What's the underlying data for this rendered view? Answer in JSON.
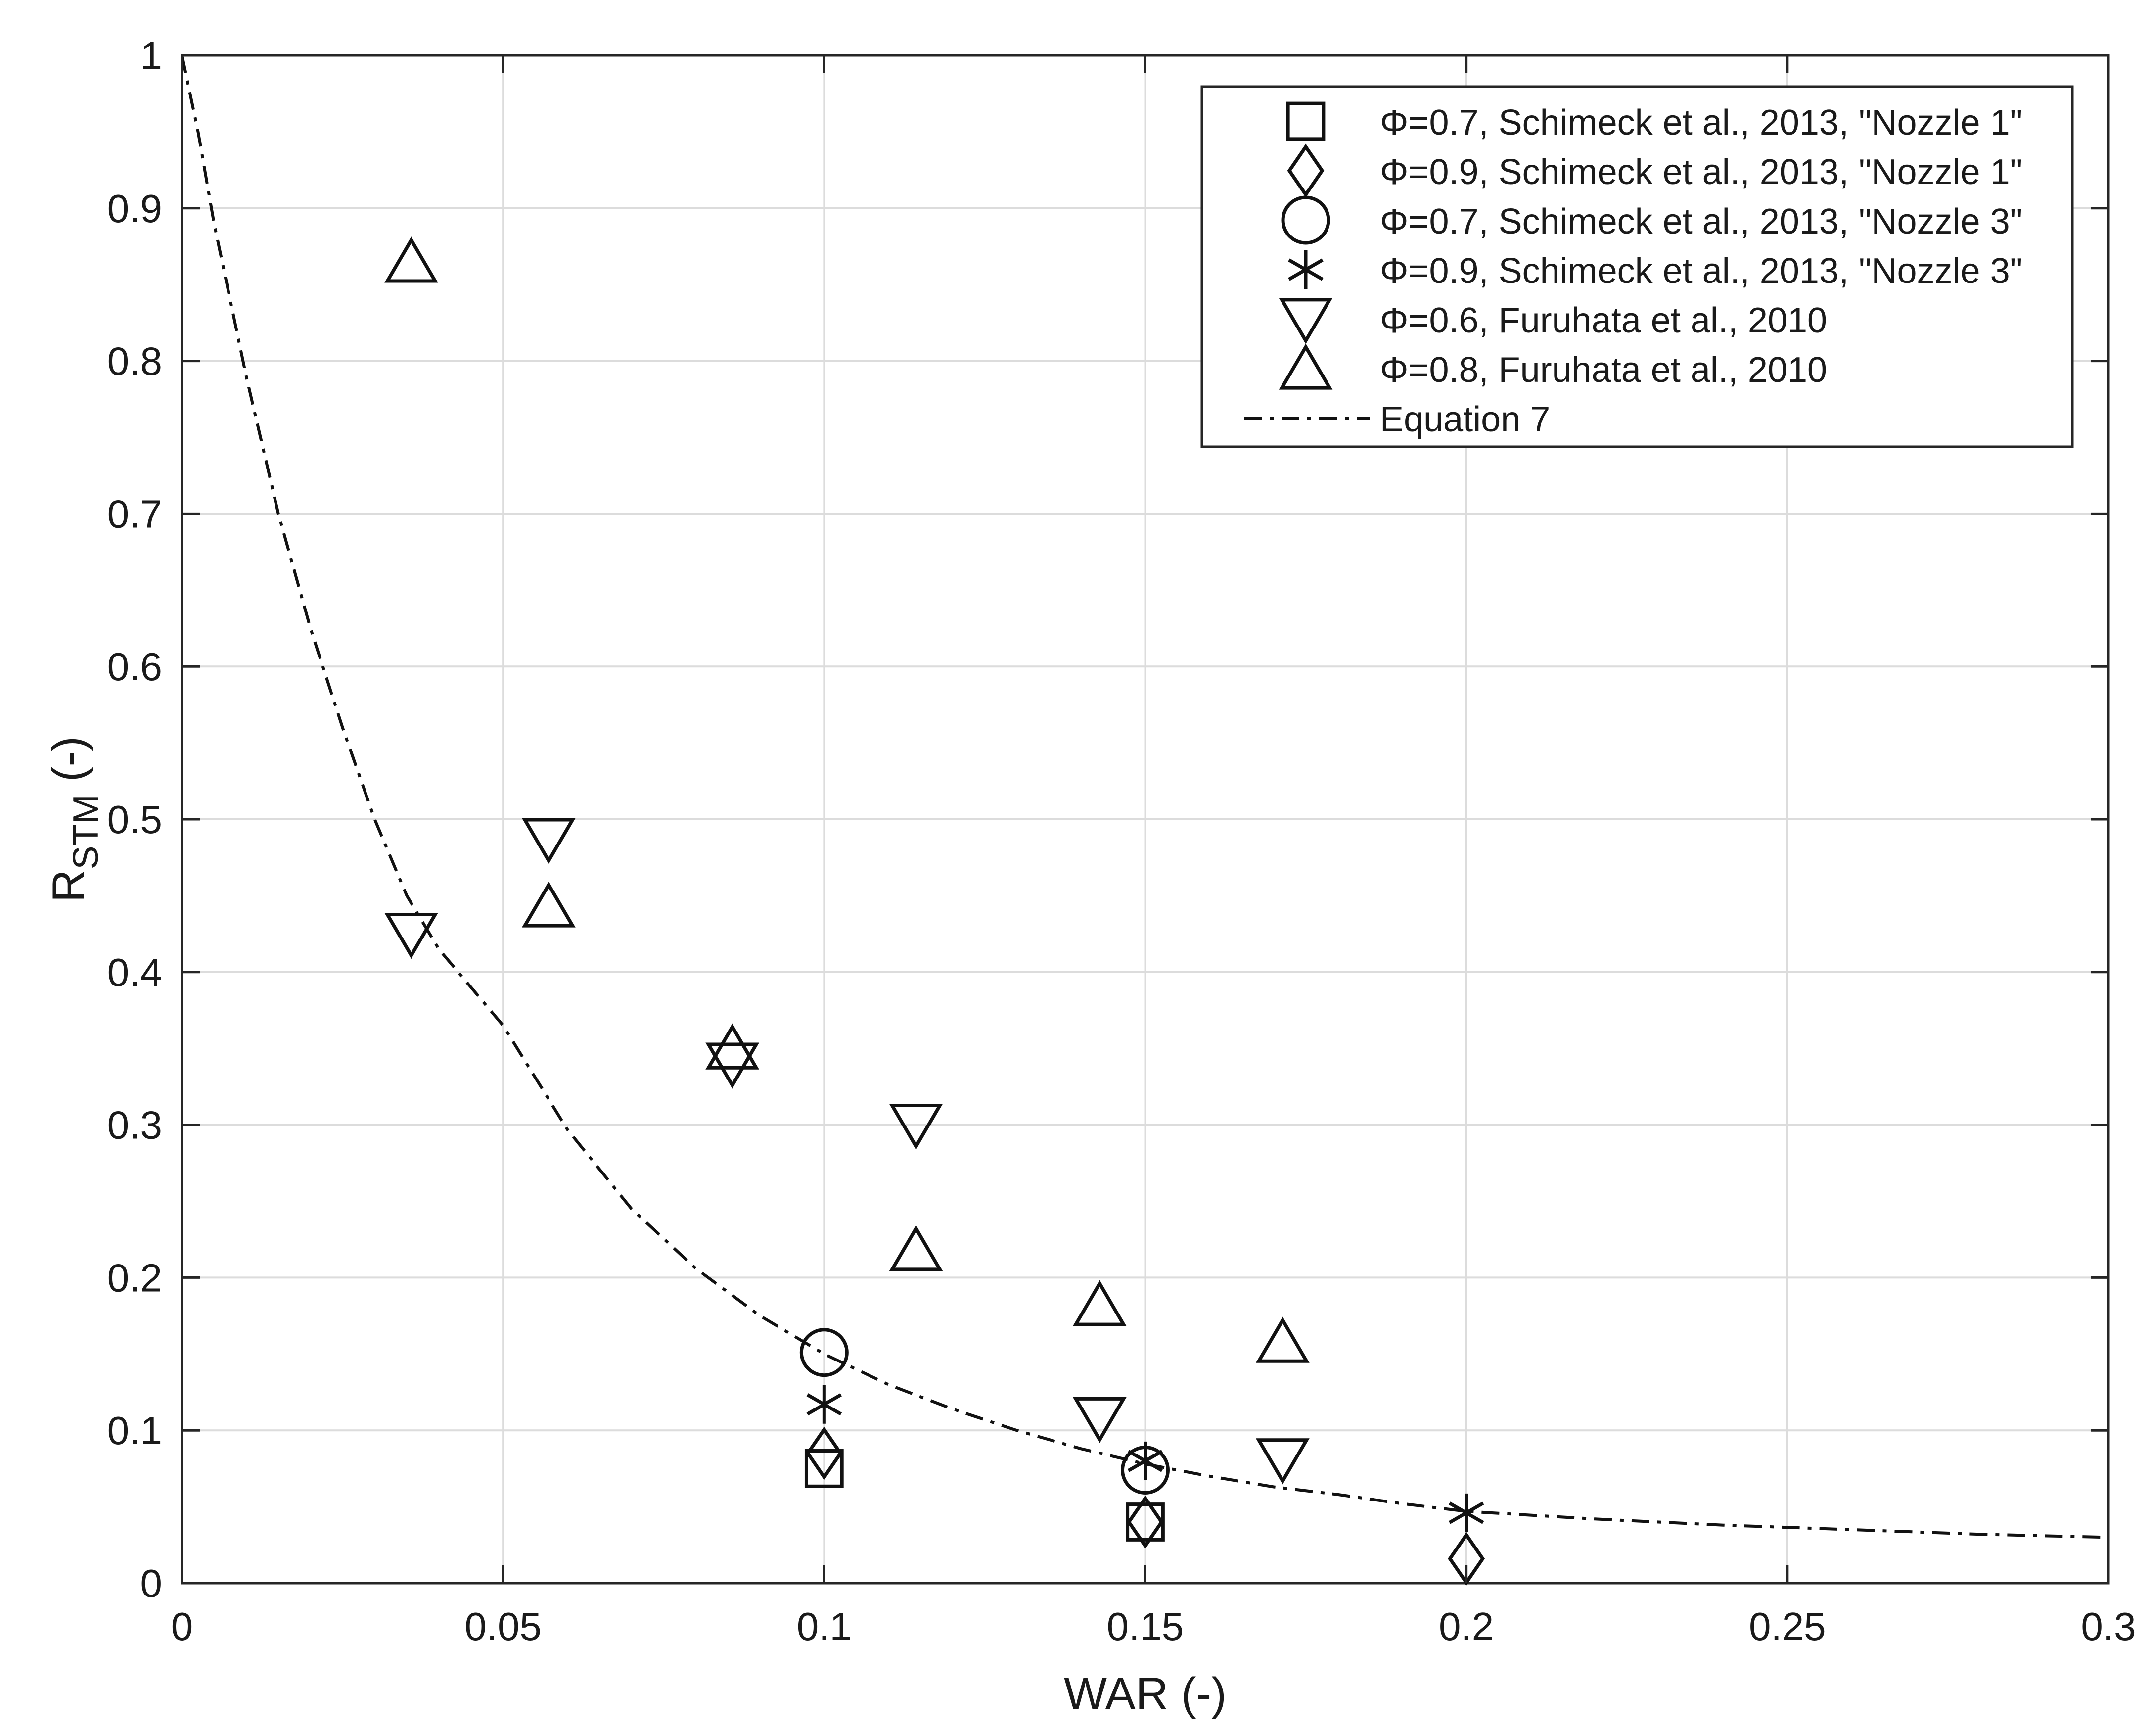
{
  "chart_data": {
    "type": "scatter",
    "xlabel": "WAR (-)",
    "ylabel_main": "R",
    "ylabel_sub": "STM",
    "ylabel_suffix": " (-)",
    "xlim": [
      0,
      0.3
    ],
    "ylim": [
      0,
      1
    ],
    "grid": true,
    "legend_position": "top-right",
    "x_ticks": [
      0,
      0.05,
      0.1,
      0.15,
      0.2,
      0.25,
      0.3
    ],
    "x_tick_labels": [
      "0",
      "0.05",
      "0.1",
      "0.15",
      "0.2",
      "0.25",
      "0.3"
    ],
    "y_ticks": [
      0,
      0.1,
      0.2,
      0.3,
      0.4,
      0.5,
      0.6,
      0.7,
      0.8,
      0.9,
      1
    ],
    "y_tick_labels": [
      "0",
      "0.1",
      "0.2",
      "0.3",
      "0.4",
      "0.5",
      "0.6",
      "0.7",
      "0.8",
      "0.9",
      "1"
    ],
    "series": [
      {
        "name": "Φ=0.7, Schimeck et al., 2013, \"Nozzle 1\"",
        "marker": "square",
        "x": [
          0.1,
          0.15
        ],
        "y": [
          0.075,
          0.04
        ]
      },
      {
        "name": "Φ=0.9, Schimeck et al., 2013, \"Nozzle 1\"",
        "marker": "diamond",
        "x": [
          0.1,
          0.15,
          0.2
        ],
        "y": [
          0.085,
          0.04,
          0.016
        ]
      },
      {
        "name": "Φ=0.7, Schimeck et al., 2013, \"Nozzle 3\"",
        "marker": "circle",
        "x": [
          0.1,
          0.15
        ],
        "y": [
          0.151,
          0.074
        ]
      },
      {
        "name": "Φ=0.9, Schimeck et al., 2013, \"Nozzle 3\"",
        "marker": "asterisk",
        "x": [
          0.1,
          0.15,
          0.2
        ],
        "y": [
          0.117,
          0.08,
          0.046
        ]
      },
      {
        "name": "Φ=0.6, Furuhata et al., 2010",
        "marker": "triangle-down",
        "x": [
          0.0357,
          0.0571,
          0.0857,
          0.1143,
          0.1429,
          0.1714
        ],
        "y": [
          0.425,
          0.487,
          0.34,
          0.3,
          0.108,
          0.081
        ]
      },
      {
        "name": "Φ=0.8, Furuhata et al., 2010",
        "marker": "triangle-up",
        "x": [
          0.0357,
          0.0571,
          0.0857,
          0.1143,
          0.1429,
          0.1714
        ],
        "y": [
          0.865,
          0.443,
          0.35,
          0.218,
          0.182,
          0.158
        ]
      },
      {
        "name": "Equation 7",
        "marker": "none",
        "line_style": "dash-dot",
        "x": [
          0.0,
          0.0025,
          0.005,
          0.0075,
          0.01,
          0.015,
          0.02,
          0.025,
          0.03,
          0.035,
          0.04,
          0.045,
          0.05,
          0.06,
          0.07,
          0.08,
          0.09,
          0.1,
          0.11,
          0.12,
          0.13,
          0.14,
          0.15,
          0.16,
          0.17,
          0.18,
          0.19,
          0.2,
          0.22,
          0.24,
          0.26,
          0.28,
          0.3
        ],
        "y": [
          1.0,
          0.95,
          0.89,
          0.84,
          0.79,
          0.7,
          0.625,
          0.56,
          0.5,
          0.45,
          0.415,
          0.39,
          0.365,
          0.297,
          0.245,
          0.206,
          0.175,
          0.15,
          0.13,
          0.114,
          0.1,
          0.088,
          0.078,
          0.07,
          0.063,
          0.058,
          0.052,
          0.047,
          0.042,
          0.038,
          0.035,
          0.032,
          0.03
        ]
      }
    ]
  }
}
